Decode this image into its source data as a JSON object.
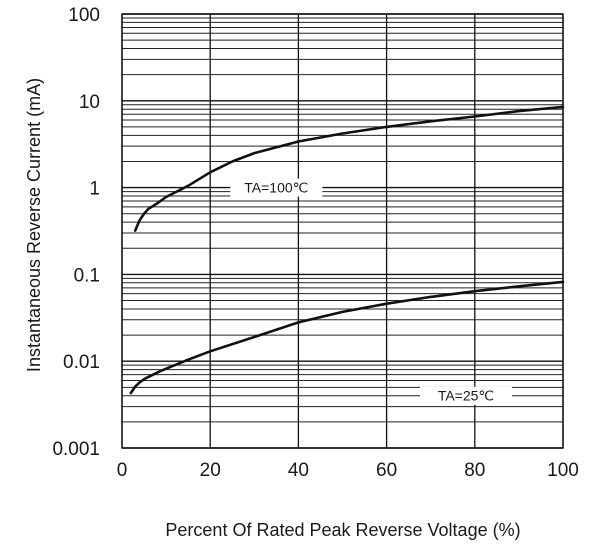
{
  "chart_data": {
    "type": "line",
    "xlabel": "Percent  Of  Rated  Peak Reverse  Voltage  (%)",
    "ylabel": "Instantaneous  Reverse Current (mA)",
    "xlim": [
      0,
      100
    ],
    "ylim": [
      0.001,
      100
    ],
    "y_scale": "log",
    "grid": true,
    "x_ticks": [
      {
        "value": 0,
        "label": "0"
      },
      {
        "value": 20,
        "label": "20"
      },
      {
        "value": 40,
        "label": "40"
      },
      {
        "value": 60,
        "label": "60"
      },
      {
        "value": 80,
        "label": "80"
      },
      {
        "value": 100,
        "label": "100"
      }
    ],
    "y_ticks": [
      {
        "value": 0.001,
        "label": "0.001"
      },
      {
        "value": 0.01,
        "label": "0.01"
      },
      {
        "value": 0.1,
        "label": "0.1"
      },
      {
        "value": 1,
        "label": "1"
      },
      {
        "value": 10,
        "label": "10"
      },
      {
        "value": 100,
        "label": "100"
      }
    ],
    "series": [
      {
        "name": "TA=100℃",
        "x": [
          3,
          4,
          5,
          6,
          8,
          10,
          15,
          20,
          25,
          30,
          40,
          50,
          60,
          70,
          80,
          90,
          100
        ],
        "y": [
          0.32,
          0.42,
          0.5,
          0.57,
          0.66,
          0.78,
          1.05,
          1.5,
          2.0,
          2.5,
          3.4,
          4.2,
          5.0,
          5.8,
          6.6,
          7.6,
          8.5
        ]
      },
      {
        "name": "TA=25℃",
        "x": [
          2,
          3,
          4,
          5,
          6,
          8,
          10,
          15,
          20,
          30,
          40,
          50,
          60,
          70,
          80,
          90,
          100
        ],
        "y": [
          0.0043,
          0.0051,
          0.0057,
          0.0062,
          0.0066,
          0.0074,
          0.0082,
          0.0104,
          0.013,
          0.019,
          0.028,
          0.037,
          0.046,
          0.055,
          0.064,
          0.073,
          0.082
        ]
      }
    ]
  }
}
